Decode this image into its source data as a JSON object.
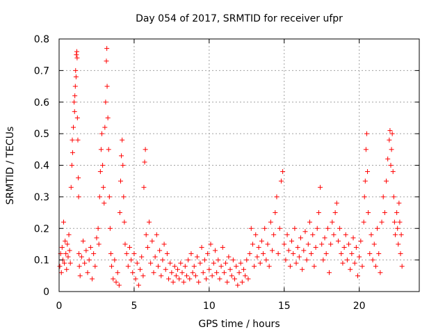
{
  "chart_data": {
    "type": "scatter",
    "title": "Day 054 of 2017, SRMTID for receiver ufpr",
    "xlabel": "GPS time / hours",
    "ylabel": "SRMTID / TECUs",
    "xlim": [
      0,
      24
    ],
    "ylim": [
      0,
      0.8
    ],
    "xticks": [
      0,
      5,
      10,
      15,
      20
    ],
    "xtick_labels": [
      "0",
      "5",
      "10",
      "15",
      "20"
    ],
    "yticks": [
      0,
      0.1,
      0.2,
      0.3,
      0.4,
      0.5,
      0.6,
      0.7,
      0.8
    ],
    "ytick_labels": [
      "0",
      "0.1",
      "0.2",
      "0.3",
      "0.4",
      "0.5",
      "0.6",
      "0.7",
      "0.8"
    ],
    "grid": true,
    "marker": "+",
    "color": "#ff0000",
    "series": [
      {
        "name": "SRMTID",
        "points": [
          [
            0.05,
            0.08
          ],
          [
            0.1,
            0.12
          ],
          [
            0.15,
            0.06
          ],
          [
            0.2,
            0.14
          ],
          [
            0.25,
            0.1
          ],
          [
            0.3,
            0.22
          ],
          [
            0.35,
            0.09
          ],
          [
            0.4,
            0.16
          ],
          [
            0.45,
            0.12
          ],
          [
            0.5,
            0.07
          ],
          [
            0.55,
            0.15
          ],
          [
            0.6,
            0.11
          ],
          [
            0.65,
            0.18
          ],
          [
            0.7,
            0.13
          ],
          [
            0.75,
            0.09
          ],
          [
            0.8,
            0.33
          ],
          [
            0.85,
            0.4
          ],
          [
            0.88,
            0.48
          ],
          [
            0.9,
            0.44
          ],
          [
            0.95,
            0.52
          ],
          [
            1.0,
            0.6
          ],
          [
            1.03,
            0.57
          ],
          [
            1.05,
            0.62
          ],
          [
            1.08,
            0.65
          ],
          [
            1.1,
            0.7
          ],
          [
            1.13,
            0.68
          ],
          [
            1.15,
            0.75
          ],
          [
            1.18,
            0.76
          ],
          [
            1.2,
            0.74
          ],
          [
            1.22,
            0.55
          ],
          [
            1.25,
            0.48
          ],
          [
            1.28,
            0.36
          ],
          [
            1.3,
            0.3
          ],
          [
            1.32,
            0.12
          ],
          [
            1.35,
            0.08
          ],
          [
            1.4,
            0.05
          ],
          [
            1.5,
            0.11
          ],
          [
            1.6,
            0.16
          ],
          [
            1.7,
            0.09
          ],
          [
            1.8,
            0.13
          ],
          [
            1.9,
            0.06
          ],
          [
            2.0,
            0.1
          ],
          [
            2.1,
            0.14
          ],
          [
            2.2,
            0.04
          ],
          [
            2.3,
            0.12
          ],
          [
            2.4,
            0.08
          ],
          [
            2.5,
            0.17
          ],
          [
            2.6,
            0.2
          ],
          [
            2.65,
            0.15
          ],
          [
            2.7,
            0.3
          ],
          [
            2.75,
            0.38
          ],
          [
            2.8,
            0.45
          ],
          [
            2.85,
            0.5
          ],
          [
            2.9,
            0.4
          ],
          [
            2.95,
            0.33
          ],
          [
            3.0,
            0.28
          ],
          [
            3.05,
            0.52
          ],
          [
            3.1,
            0.6
          ],
          [
            3.15,
            0.73
          ],
          [
            3.18,
            0.77
          ],
          [
            3.2,
            0.65
          ],
          [
            3.25,
            0.55
          ],
          [
            3.3,
            0.45
          ],
          [
            3.35,
            0.3
          ],
          [
            3.4,
            0.2
          ],
          [
            3.45,
            0.12
          ],
          [
            3.5,
            0.08
          ],
          [
            3.6,
            0.04
          ],
          [
            3.7,
            0.1
          ],
          [
            3.8,
            0.03
          ],
          [
            3.9,
            0.06
          ],
          [
            4.0,
            0.02
          ],
          [
            4.05,
            0.25
          ],
          [
            4.1,
            0.35
          ],
          [
            4.15,
            0.43
          ],
          [
            4.2,
            0.48
          ],
          [
            4.25,
            0.4
          ],
          [
            4.3,
            0.3
          ],
          [
            4.35,
            0.22
          ],
          [
            4.4,
            0.15
          ],
          [
            4.5,
            0.12
          ],
          [
            4.6,
            0.08
          ],
          [
            4.7,
            0.14
          ],
          [
            4.8,
            0.1
          ],
          [
            4.9,
            0.06
          ],
          [
            5.0,
            0.12
          ],
          [
            5.1,
            0.04
          ],
          [
            5.2,
            0.09
          ],
          [
            5.3,
            0.02
          ],
          [
            5.4,
            0.07
          ],
          [
            5.5,
            0.11
          ],
          [
            5.6,
            0.05
          ],
          [
            5.65,
            0.33
          ],
          [
            5.7,
            0.41
          ],
          [
            5.75,
            0.45
          ],
          [
            5.8,
            0.18
          ],
          [
            5.9,
            0.14
          ],
          [
            6.0,
            0.22
          ],
          [
            6.1,
            0.09
          ],
          [
            6.2,
            0.16
          ],
          [
            6.3,
            0.06
          ],
          [
            6.4,
            0.11
          ],
          [
            6.5,
            0.18
          ],
          [
            6.6,
            0.08
          ],
          [
            6.7,
            0.13
          ],
          [
            6.8,
            0.05
          ],
          [
            6.9,
            0.1
          ],
          [
            7.0,
            0.15
          ],
          [
            7.1,
            0.07
          ],
          [
            7.2,
            0.12
          ],
          [
            7.3,
            0.04
          ],
          [
            7.4,
            0.09
          ],
          [
            7.5,
            0.06
          ],
          [
            7.6,
            0.03
          ],
          [
            7.7,
            0.08
          ],
          [
            7.8,
            0.05
          ],
          [
            7.9,
            0.07
          ],
          [
            8.0,
            0.04
          ],
          [
            8.1,
            0.09
          ],
          [
            8.2,
            0.06
          ],
          [
            8.3,
            0.03
          ],
          [
            8.4,
            0.08
          ],
          [
            8.5,
            0.05
          ],
          [
            8.6,
            0.1
          ],
          [
            8.7,
            0.04
          ],
          [
            8.8,
            0.12
          ],
          [
            8.9,
            0.06
          ],
          [
            9.0,
            0.08
          ],
          [
            9.1,
            0.05
          ],
          [
            9.2,
            0.11
          ],
          [
            9.3,
            0.03
          ],
          [
            9.4,
            0.09
          ],
          [
            9.5,
            0.14
          ],
          [
            9.6,
            0.06
          ],
          [
            9.7,
            0.1
          ],
          [
            9.8,
            0.04
          ],
          [
            9.9,
            0.12
          ],
          [
            10.0,
            0.07
          ],
          [
            10.1,
            0.15
          ],
          [
            10.2,
            0.05
          ],
          [
            10.3,
            0.09
          ],
          [
            10.4,
            0.13
          ],
          [
            10.5,
            0.06
          ],
          [
            10.6,
            0.1
          ],
          [
            10.7,
            0.04
          ],
          [
            10.8,
            0.08
          ],
          [
            10.9,
            0.14
          ],
          [
            11.0,
            0.06
          ],
          [
            11.1,
            0.09
          ],
          [
            11.2,
            0.03
          ],
          [
            11.3,
            0.11
          ],
          [
            11.4,
            0.07
          ],
          [
            11.5,
            0.05
          ],
          [
            11.6,
            0.1
          ],
          [
            11.7,
            0.04
          ],
          [
            11.8,
            0.08
          ],
          [
            11.9,
            0.02
          ],
          [
            12.0,
            0.06
          ],
          [
            12.1,
            0.09
          ],
          [
            12.2,
            0.03
          ],
          [
            12.3,
            0.07
          ],
          [
            12.4,
            0.05
          ],
          [
            12.5,
            0.1
          ],
          [
            12.6,
            0.04
          ],
          [
            12.7,
            0.12
          ],
          [
            12.8,
            0.2
          ],
          [
            12.9,
            0.15
          ],
          [
            13.0,
            0.08
          ],
          [
            13.1,
            0.18
          ],
          [
            13.2,
            0.11
          ],
          [
            13.3,
            0.14
          ],
          [
            13.4,
            0.09
          ],
          [
            13.5,
            0.16
          ],
          [
            13.6,
            0.12
          ],
          [
            13.7,
            0.2
          ],
          [
            13.8,
            0.1
          ],
          [
            13.9,
            0.15
          ],
          [
            14.0,
            0.08
          ],
          [
            14.1,
            0.22
          ],
          [
            14.2,
            0.13
          ],
          [
            14.3,
            0.18
          ],
          [
            14.4,
            0.25
          ],
          [
            14.5,
            0.3
          ],
          [
            14.6,
            0.12
          ],
          [
            14.7,
            0.2
          ],
          [
            14.8,
            0.35
          ],
          [
            14.9,
            0.38
          ],
          [
            15.0,
            0.15
          ],
          [
            15.1,
            0.1
          ],
          [
            15.2,
            0.18
          ],
          [
            15.3,
            0.13
          ],
          [
            15.4,
            0.08
          ],
          [
            15.5,
            0.16
          ],
          [
            15.6,
            0.12
          ],
          [
            15.7,
            0.2
          ],
          [
            15.8,
            0.09
          ],
          [
            15.9,
            0.14
          ],
          [
            16.0,
            0.11
          ],
          [
            16.1,
            0.17
          ],
          [
            16.2,
            0.07
          ],
          [
            16.3,
            0.13
          ],
          [
            16.4,
            0.19
          ],
          [
            16.5,
            0.1
          ],
          [
            16.6,
            0.15
          ],
          [
            16.7,
            0.22
          ],
          [
            16.8,
            0.12
          ],
          [
            16.9,
            0.18
          ],
          [
            17.0,
            0.08
          ],
          [
            17.1,
            0.14
          ],
          [
            17.2,
            0.2
          ],
          [
            17.3,
            0.25
          ],
          [
            17.4,
            0.33
          ],
          [
            17.5,
            0.15
          ],
          [
            17.6,
            0.1
          ],
          [
            17.7,
            0.17
          ],
          [
            17.8,
            0.12
          ],
          [
            17.9,
            0.2
          ],
          [
            18.0,
            0.06
          ],
          [
            18.1,
            0.15
          ],
          [
            18.2,
            0.22
          ],
          [
            18.3,
            0.18
          ],
          [
            18.4,
            0.25
          ],
          [
            18.5,
            0.28
          ],
          [
            18.6,
            0.16
          ],
          [
            18.7,
            0.2
          ],
          [
            18.8,
            0.12
          ],
          [
            18.9,
            0.09
          ],
          [
            19.0,
            0.14
          ],
          [
            19.1,
            0.18
          ],
          [
            19.2,
            0.1
          ],
          [
            19.3,
            0.15
          ],
          [
            19.4,
            0.07
          ],
          [
            19.5,
            0.12
          ],
          [
            19.6,
            0.17
          ],
          [
            19.7,
            0.09
          ],
          [
            19.8,
            0.14
          ],
          [
            19.9,
            0.05
          ],
          [
            20.0,
            0.11
          ],
          [
            20.1,
            0.16
          ],
          [
            20.2,
            0.08
          ],
          [
            20.3,
            0.22
          ],
          [
            20.35,
            0.3
          ],
          [
            20.4,
            0.35
          ],
          [
            20.45,
            0.45
          ],
          [
            20.5,
            0.5
          ],
          [
            20.55,
            0.38
          ],
          [
            20.6,
            0.25
          ],
          [
            20.7,
            0.12
          ],
          [
            20.8,
            0.18
          ],
          [
            20.9,
            0.1
          ],
          [
            21.0,
            0.15
          ],
          [
            21.1,
            0.08
          ],
          [
            21.2,
            0.2
          ],
          [
            21.3,
            0.12
          ],
          [
            21.4,
            0.06
          ],
          [
            21.5,
            0.22
          ],
          [
            21.6,
            0.3
          ],
          [
            21.7,
            0.25
          ],
          [
            21.8,
            0.35
          ],
          [
            21.9,
            0.42
          ],
          [
            22.0,
            0.48
          ],
          [
            22.05,
            0.51
          ],
          [
            22.1,
            0.4
          ],
          [
            22.15,
            0.45
          ],
          [
            22.2,
            0.5
          ],
          [
            22.25,
            0.38
          ],
          [
            22.3,
            0.3
          ],
          [
            22.35,
            0.22
          ],
          [
            22.4,
            0.18
          ],
          [
            22.5,
            0.25
          ],
          [
            22.55,
            0.2
          ],
          [
            22.6,
            0.15
          ],
          [
            22.65,
            0.28
          ],
          [
            22.7,
            0.22
          ],
          [
            22.75,
            0.12
          ],
          [
            22.8,
            0.18
          ],
          [
            22.85,
            0.08
          ]
        ]
      }
    ]
  }
}
